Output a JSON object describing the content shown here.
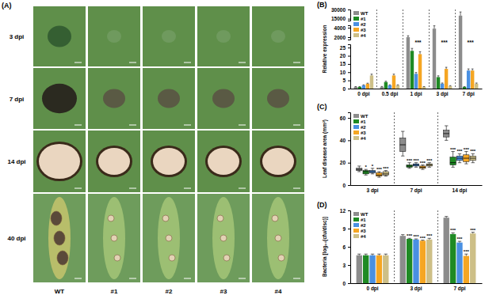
{
  "panel_a": {
    "label": "(A)",
    "rows": [
      "3 dpi",
      "7 dpi",
      "14 dpi",
      "40 dpi"
    ],
    "columns": [
      "WT",
      "#1",
      "#2",
      "#3",
      "#4"
    ]
  },
  "chart_data": [
    {
      "type": "bar",
      "panel_label": "(B)",
      "y_label": "Relative expression",
      "categories": [
        "0 dpi",
        "0.5 dpi",
        "1 dpi",
        "3 dpi",
        "7 dpi"
      ],
      "y_segments": [
        {
          "ylim": [
            0,
            27
          ],
          "yticks": [
            0,
            5,
            10,
            15,
            20,
            25
          ]
        },
        {
          "ylim": [
            1500,
            4500
          ],
          "yticks": [
            2000,
            4000
          ]
        },
        {
          "ylim": [
            12000,
            30000
          ],
          "yticks": [
            15000,
            30000
          ]
        }
      ],
      "legend": "upper left",
      "group_annotations": [
        null,
        null,
        "***",
        "***",
        "***"
      ],
      "series": [
        {
          "name": "WT",
          "color": "#8c8c8c",
          "values": [
            1,
            1,
            2000,
            3800,
            20000
          ],
          "errors": [
            0.2,
            0.3,
            300,
            600,
            6000
          ]
        },
        {
          "name": "#1",
          "color": "#1f8a24",
          "values": [
            1,
            4,
            23,
            7,
            1
          ],
          "errors": [
            0.2,
            0.5,
            1.5,
            0.8,
            0.2
          ]
        },
        {
          "name": "#2",
          "color": "#4a90e2",
          "values": [
            2,
            2,
            9,
            3,
            11
          ],
          "errors": [
            0.3,
            0.3,
            0.8,
            0.4,
            1
          ]
        },
        {
          "name": "#3",
          "color": "#f5a623",
          "values": [
            3,
            8,
            21,
            12,
            11
          ],
          "errors": [
            0.3,
            0.8,
            1.5,
            1,
            1
          ]
        },
        {
          "name": "#4",
          "color": "#cdbf87",
          "values": [
            8,
            2,
            1,
            1.5,
            3
          ],
          "errors": [
            0.8,
            0.3,
            0.2,
            0.3,
            0.4
          ]
        }
      ]
    },
    {
      "type": "box",
      "panel_label": "(C)",
      "y_label": "Leaf disease area (mm²)",
      "categories": [
        "3 dpi",
        "7 dpi",
        "14 dpi"
      ],
      "ylim": [
        0,
        65
      ],
      "yticks": [
        0,
        20,
        40,
        60
      ],
      "legend": "upper left",
      "series": [
        {
          "name": "WT",
          "color": "#8c8c8c",
          "values": [
            [
              12,
              13,
              14,
              15,
              17
            ],
            [
              26,
              30,
              36,
              42,
              48
            ],
            [
              40,
              43,
              46,
              49,
              53
            ]
          ],
          "significance": [
            null,
            null,
            null
          ]
        },
        {
          "name": "#1",
          "color": "#1f8a24",
          "values": [
            [
              9,
              10,
              12,
              13,
              14
            ],
            [
              15,
              16,
              17,
              18,
              20
            ],
            [
              16,
              18,
              20,
              25,
              30
            ]
          ],
          "significance": [
            "*",
            "***",
            "***"
          ]
        },
        {
          "name": "#2",
          "color": "#4a90e2",
          "values": [
            [
              10,
              11,
              12,
              13,
              15
            ],
            [
              16,
              17,
              18,
              19,
              20
            ],
            [
              20,
              22,
              24,
              26,
              28
            ]
          ],
          "significance": [
            "*",
            "***",
            "***"
          ]
        },
        {
          "name": "#3",
          "color": "#f5a623",
          "values": [
            [
              7,
              8,
              9,
              11,
              12
            ],
            [
              14,
              15,
              16,
              17,
              18
            ],
            [
              19,
              21,
              24,
              27,
              30
            ]
          ],
          "significance": [
            "***",
            "***",
            "***"
          ]
        },
        {
          "name": "#4",
          "color": "#cdbf87",
          "values": [
            [
              8,
              9,
              10,
              12,
              13
            ],
            [
              16,
              17,
              18,
              19,
              20
            ],
            [
              20,
              22,
              24,
              26,
              28
            ]
          ],
          "significance": [
            "***",
            "***",
            "***"
          ]
        }
      ]
    },
    {
      "type": "bar",
      "panel_label": "(D)",
      "y_label": "Bacteria [log₁₀(cfu/disc)]",
      "categories": [
        "0 dpi",
        "3 dpi",
        "7 dpi"
      ],
      "ylim": [
        0,
        12
      ],
      "yticks": [
        0,
        3,
        6,
        9,
        12
      ],
      "legend": "upper left",
      "series": [
        {
          "name": "WT",
          "color": "#8c8c8c",
          "values": [
            4.6,
            7.8,
            10.8
          ],
          "errors": [
            0.2,
            0.2,
            0.2
          ],
          "significance": [
            null,
            null,
            null
          ]
        },
        {
          "name": "#1",
          "color": "#1f8a24",
          "values": [
            4.6,
            7.3,
            8.1
          ],
          "errors": [
            0.2,
            0.1,
            0.2
          ],
          "significance": [
            null,
            "***",
            "***"
          ]
        },
        {
          "name": "#2",
          "color": "#4a90e2",
          "values": [
            4.6,
            7.2,
            6.7
          ],
          "errors": [
            0.2,
            0.1,
            0.2
          ],
          "significance": [
            null,
            "***",
            "***"
          ]
        },
        {
          "name": "#3",
          "color": "#f5a623",
          "values": [
            4.6,
            7.0,
            4.5
          ],
          "errors": [
            0.2,
            0.1,
            0.3
          ],
          "significance": [
            null,
            "***",
            "***"
          ]
        },
        {
          "name": "#4",
          "color": "#cdbf87",
          "values": [
            4.6,
            7.2,
            8.2
          ],
          "errors": [
            0.2,
            0.2,
            0.2
          ],
          "significance": [
            null,
            "***",
            "***"
          ]
        }
      ]
    }
  ]
}
